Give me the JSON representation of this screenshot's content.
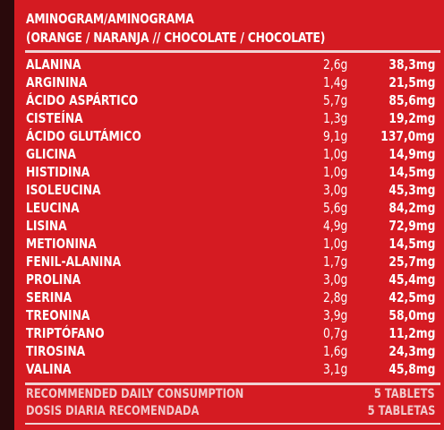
{
  "title_line1": "AMINOGRAM/AMINOGRAMA",
  "title_line2": "(ORANGE / NARANJA // CHOCOLATE / CHOCOLATE)",
  "amino_acids": [
    {
      "name": "ALANINA",
      "grams": "2,6g",
      "mg": "38,3mg"
    },
    {
      "name": "ARGININA",
      "grams": "1,4g",
      "mg": "21,5mg"
    },
    {
      "name": "ÁCIDO ASPÁRTICO",
      "grams": "5,7g",
      "mg": "85,6mg"
    },
    {
      "name": "CISTEÍNA",
      "grams": "1,3g",
      "mg": "19,2mg"
    },
    {
      "name": "ÁCIDO GLUTÁMICO",
      "grams": "9,1g",
      "mg": "137,0mg"
    },
    {
      "name": "GLICINA",
      "grams": "1,0g",
      "mg": "14,9mg"
    },
    {
      "name": "HISTIDINA",
      "grams": "1,0g",
      "mg": "14,5mg"
    },
    {
      "name": "ISOLEUCINA",
      "grams": "3,0g",
      "mg": "45,3mg"
    },
    {
      "name": "LEUCINA",
      "grams": "5,6g",
      "mg": "84,2mg"
    },
    {
      "name": "LISINA",
      "grams": "4,9g",
      "mg": "72,9mg"
    },
    {
      "name": "METIONINA",
      "grams": "1,0g",
      "mg": "14,5mg"
    },
    {
      "name": "FENIL-ALANINA",
      "grams": "1,7g",
      "mg": "25,7mg"
    },
    {
      "name": "PROLINA",
      "grams": "3,0g",
      "mg": "45,4mg"
    },
    {
      "name": "SERINA",
      "grams": "2,8g",
      "mg": "42,5mg"
    },
    {
      "name": "TREONINA",
      "grams": "3,9g",
      "mg": "58,0mg"
    },
    {
      "name": "TRIPTÓFANO",
      "grams": "0,7g",
      "mg": "11,2mg"
    },
    {
      "name": "TIROSINA",
      "grams": "1,6g",
      "mg": "24,3mg"
    },
    {
      "name": "VALINA",
      "grams": "3,1g",
      "mg": "45,8mg"
    }
  ],
  "footer": {
    "rec_en_label": "RECOMMENDED DAILY CONSUMPTION",
    "rec_en_value": "5  TABLETS",
    "rec_es_label": "DOSIS DIARIA RECOMENDADA",
    "rec_es_value": "5 TABLETAS"
  },
  "colors": {
    "panel": "#d51b22",
    "text": "#ffffff",
    "footer_text": "#f2c9cb"
  }
}
